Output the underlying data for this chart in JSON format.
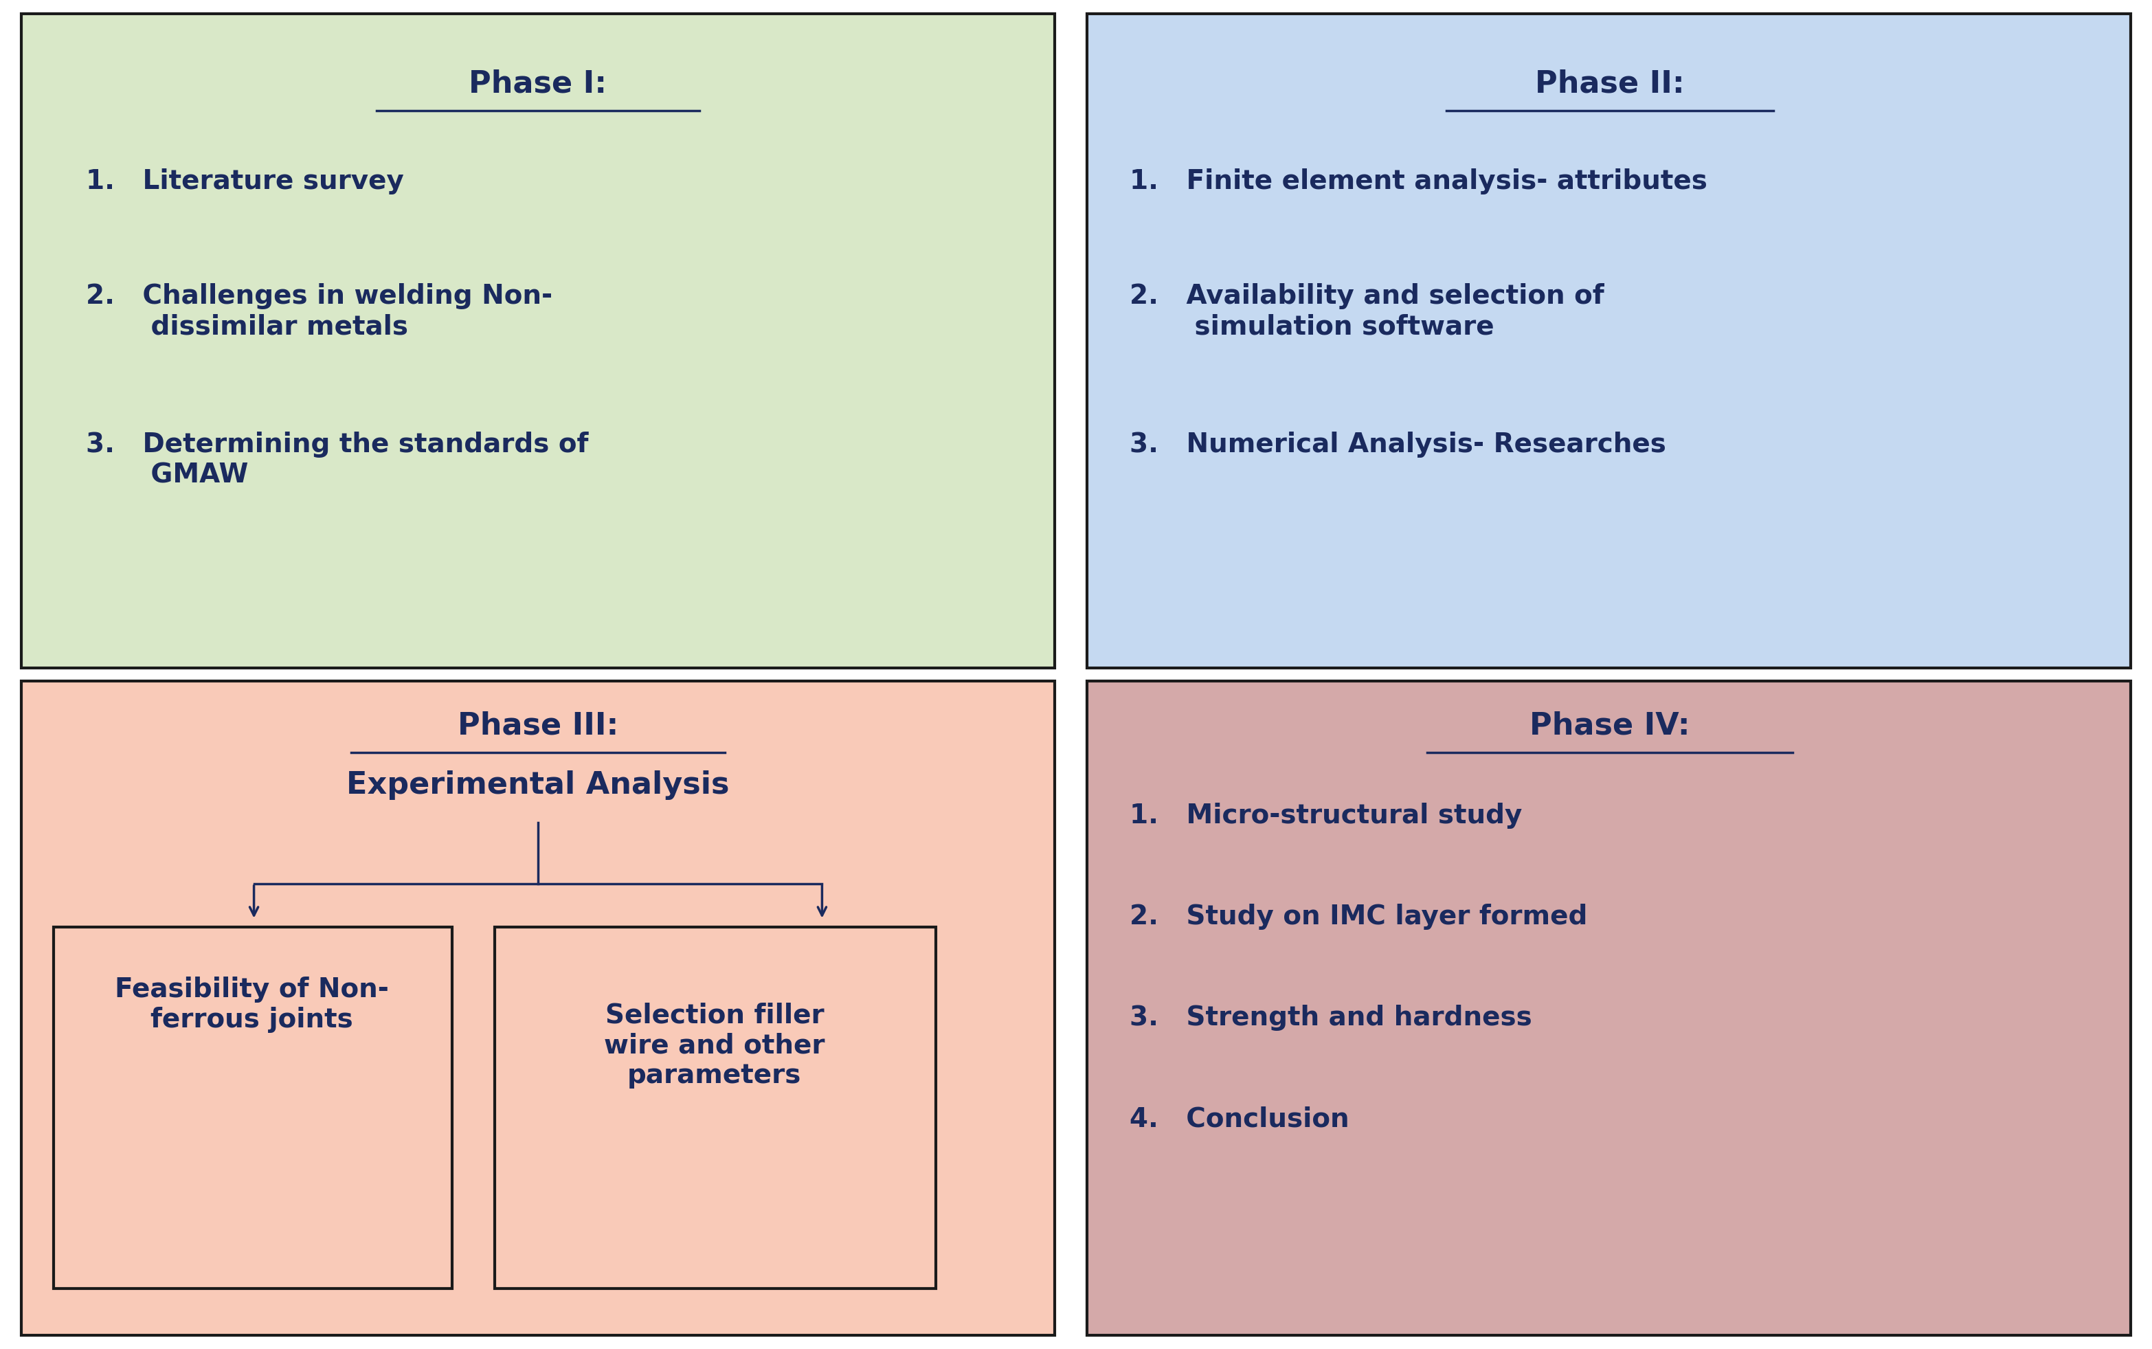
{
  "bg_color": "#ffffff",
  "text_color": "#1a2a5e",
  "border_color": "#1a1a1a",
  "phase1": {
    "bg": "#d9e8c8",
    "title": "Phase I:",
    "items": [
      "1.   Literature survey",
      "2.   Challenges in welding Non-\n       dissimilar metals",
      "3.   Determining the standards of\n       GMAW"
    ]
  },
  "phase2": {
    "bg": "#c5d9f1",
    "title": "Phase II:",
    "items": [
      "1.   Finite element analysis- attributes",
      "2.   Availability and selection of\n       simulation software",
      "3.   Numerical Analysis- Researches"
    ]
  },
  "phase3": {
    "bg": "#f9cab8",
    "title": "Phase III:",
    "subtitle": "Experimental Analysis",
    "box1": "Feasibility of Non-\nferrous joints",
    "box2": "Selection filler\nwire and other\nparameters"
  },
  "phase4": {
    "bg": "#d4a9a9",
    "title": "Phase IV:",
    "items": [
      "1.   Micro-structural study",
      "2.   Study on IMC layer formed",
      "3.   Strength and hardness",
      "4.   Conclusion"
    ]
  },
  "font_size_title": 32,
  "font_size_body": 28,
  "font_size_small": 26
}
